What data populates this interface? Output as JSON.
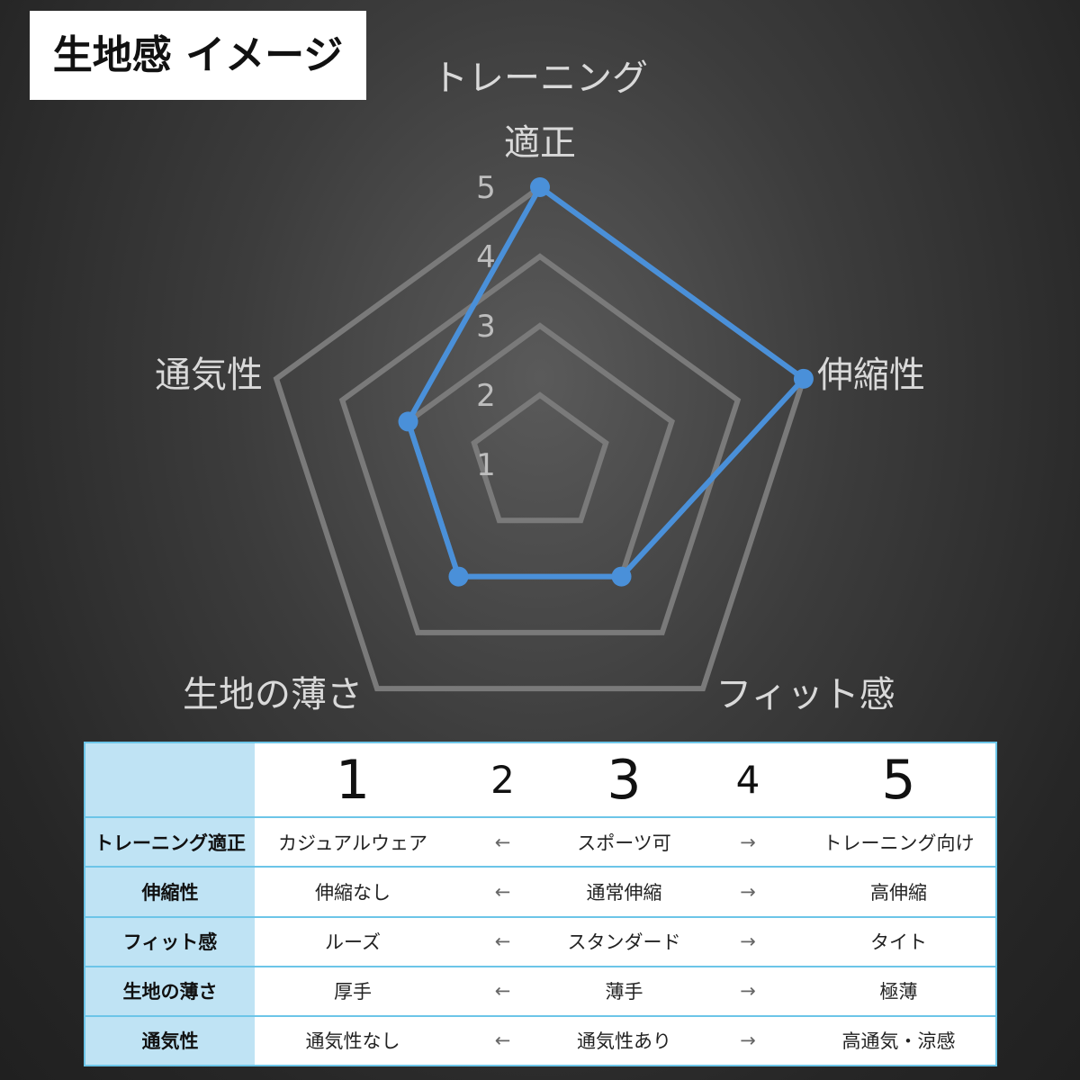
{
  "title": "生地感 イメージ",
  "chart_data": {
    "type": "radar",
    "axes": [
      "トレーニング適正",
      "伸縮性",
      "フィット感",
      "生地の薄さ",
      "通気性"
    ],
    "axis_label_lines": [
      [
        "トレーニング",
        "適正"
      ],
      [
        "伸縮性"
      ],
      [
        "フィット感"
      ],
      [
        "生地の薄さ"
      ],
      [
        "通気性"
      ]
    ],
    "values": [
      5,
      5,
      3,
      3,
      3
    ],
    "range": [
      1,
      5
    ],
    "ticks": [
      "1",
      "2",
      "3",
      "4",
      "5"
    ],
    "grid": true,
    "colors": {
      "series": "#4a90d9",
      "grid": "#7a7a7a"
    }
  },
  "table": {
    "header": [
      "",
      "1",
      "2",
      "3",
      "4",
      "5"
    ],
    "rows": [
      {
        "label": "トレーニング適正",
        "cells": [
          "カジュアルウェア",
          "←",
          "スポーツ可",
          "→",
          "トレーニング向け"
        ]
      },
      {
        "label": "伸縮性",
        "cells": [
          "伸縮なし",
          "←",
          "通常伸縮",
          "→",
          "高伸縮"
        ]
      },
      {
        "label": "フィット感",
        "cells": [
          "ルーズ",
          "←",
          "スタンダード",
          "→",
          "タイト"
        ]
      },
      {
        "label": "生地の薄さ",
        "cells": [
          "厚手",
          "←",
          "薄手",
          "→",
          "極薄"
        ]
      },
      {
        "label": "通気性",
        "cells": [
          "通気性なし",
          "←",
          "通気性あり",
          "→",
          "高通気・涼感"
        ]
      }
    ]
  }
}
